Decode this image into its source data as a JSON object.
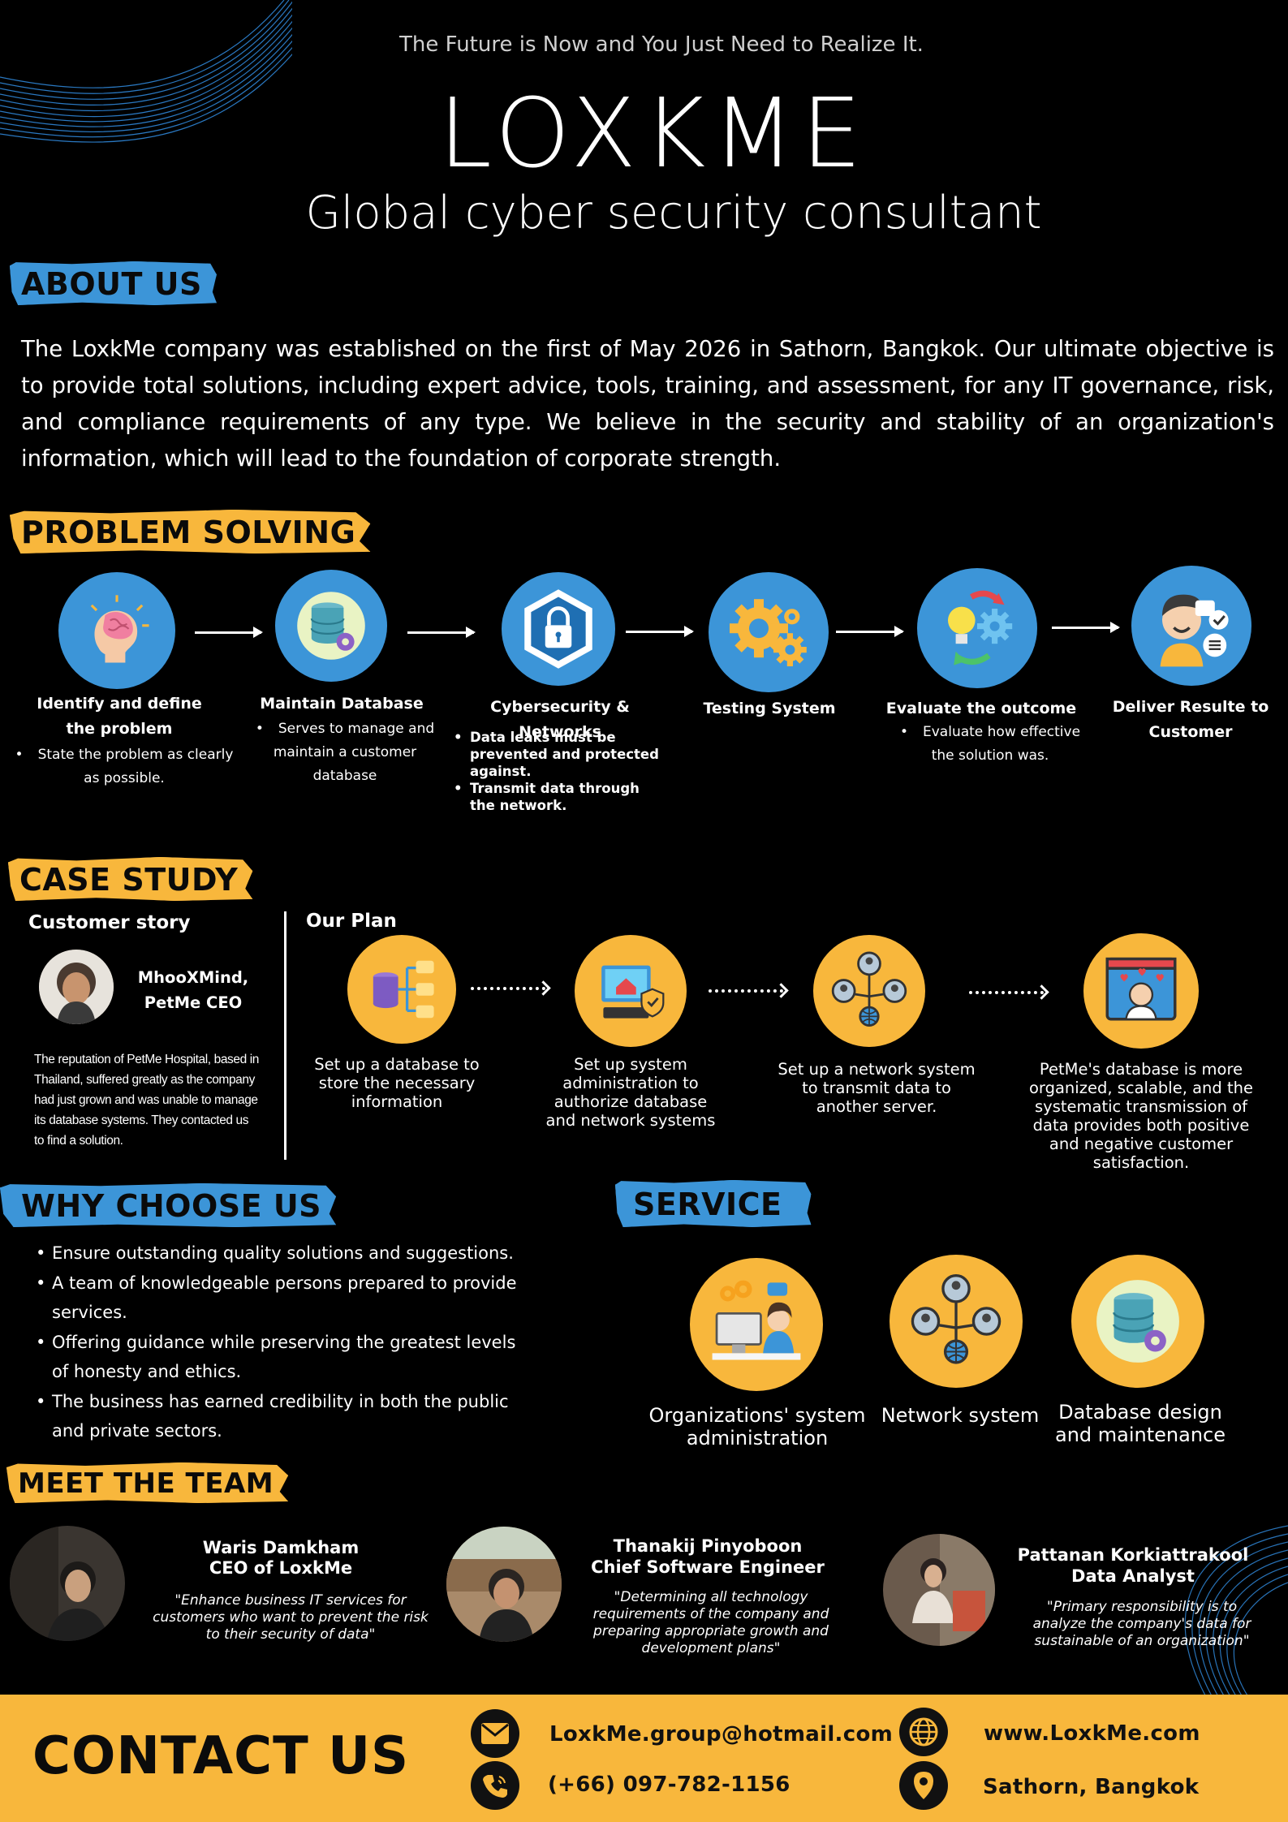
{
  "header": {
    "tagline": "The Future is Now and You Just Need to Realize It.",
    "brand": "LOXKME",
    "subtitle": "Global cyber security consultant"
  },
  "about": {
    "heading": "ABOUT US",
    "text": "The LoxkMe company was established on the first of May 2026 in Sathorn, Bangkok. Our ultimate objective is to provide total solutions, including expert advice, tools, training, and assessment, for any IT governance, risk, and compliance requirements of any type. We believe in the security and stability of an organization's information, which will lead to the foundation of corporate strength."
  },
  "problem": {
    "heading": "PROBLEM SOLVING",
    "steps": [
      {
        "title": "Identify and define the problem",
        "icon": "brain-icon",
        "bullets": [
          "State the problem as clearly as possible."
        ]
      },
      {
        "title": "Maintain Database",
        "icon": "database-gear-icon",
        "bullets": [
          "Serves to manage and maintain a customer database"
        ]
      },
      {
        "title": "Cybersecurity & Networks",
        "icon": "lock-network-icon",
        "bullets": [
          "Data leaks must be prevented and protected against.",
          "Transmit data through the network."
        ]
      },
      {
        "title": "Testing System",
        "icon": "gears-icon",
        "bullets": []
      },
      {
        "title": "Evaluate the outcome",
        "icon": "idea-cycle-icon",
        "bullets": [
          "Evaluate how effective the solution was."
        ]
      },
      {
        "title": "Deliver Resulte to Customer",
        "icon": "customer-icon",
        "bullets": []
      }
    ]
  },
  "case_study": {
    "heading": "CASE STUDY",
    "customer_story_label": "Customer story",
    "customer_name_line1": "MhooXMind,",
    "customer_name_line2": "PetMe CEO",
    "story": "The reputation of PetMe Hospital, based in Thailand, suffered greatly as the company had just grown and was unable to manage its database systems. They contacted us to find a solution.",
    "plan_label": "Our Plan",
    "plan_steps": [
      {
        "text": "Set up a database to store the necessary information",
        "icon": "database-flow-icon"
      },
      {
        "text": "Set up system administration to authorize database and network systems",
        "icon": "computer-shield-icon"
      },
      {
        "text": "Set up a network system to transmit data to another server.",
        "icon": "network-users-icon"
      },
      {
        "text": "PetMe's database is more organized, scalable, and the systematic transmission of data provides both positive and negative customer satisfaction.",
        "icon": "satisfaction-icon"
      }
    ]
  },
  "why": {
    "heading": "WHY CHOOSE US",
    "items": [
      "Ensure outstanding quality solutions and suggestions.",
      "A team of knowledgeable persons prepared to provide services.",
      "Offering guidance while preserving the greatest levels of honesty and ethics.",
      "The business has earned credibility in both the public and private sectors."
    ]
  },
  "service": {
    "heading": "SERVICE",
    "items": [
      {
        "label": "Organizations' system administration",
        "icon": "admin-desk-icon"
      },
      {
        "label": "Network system",
        "icon": "network-users-icon"
      },
      {
        "label": "Database design and maintenance",
        "icon": "database-gear-icon"
      }
    ]
  },
  "team": {
    "heading": "MEET THE TEAM",
    "members": [
      {
        "name": "Waris Damkham",
        "role": "CEO of LoxkMe",
        "quote": "\"Enhance business IT services for customers who want to prevent the risk to their security of data\""
      },
      {
        "name": "Thanakij Pinyoboon",
        "role": "Chief Software Engineer",
        "quote": "\"Determining all technology requirements of the company and preparing appropriate growth and development plans\""
      },
      {
        "name": "Pattanan Korkiattrakool",
        "role": "Data Analyst",
        "quote": "\"Primary responsibility is to analyze the company's data for sustainable of an organization\""
      }
    ]
  },
  "contact": {
    "heading": "CONTACT US",
    "email": "LoxkMe.group@hotmail.com",
    "phone": "(+66) 097-782-1156",
    "website": "www.LoxkMe.com",
    "location": "Sathorn, Bangkok"
  },
  "colors": {
    "blue": "#3c95d8",
    "yellow": "#f8b73c",
    "background": "#000000"
  }
}
